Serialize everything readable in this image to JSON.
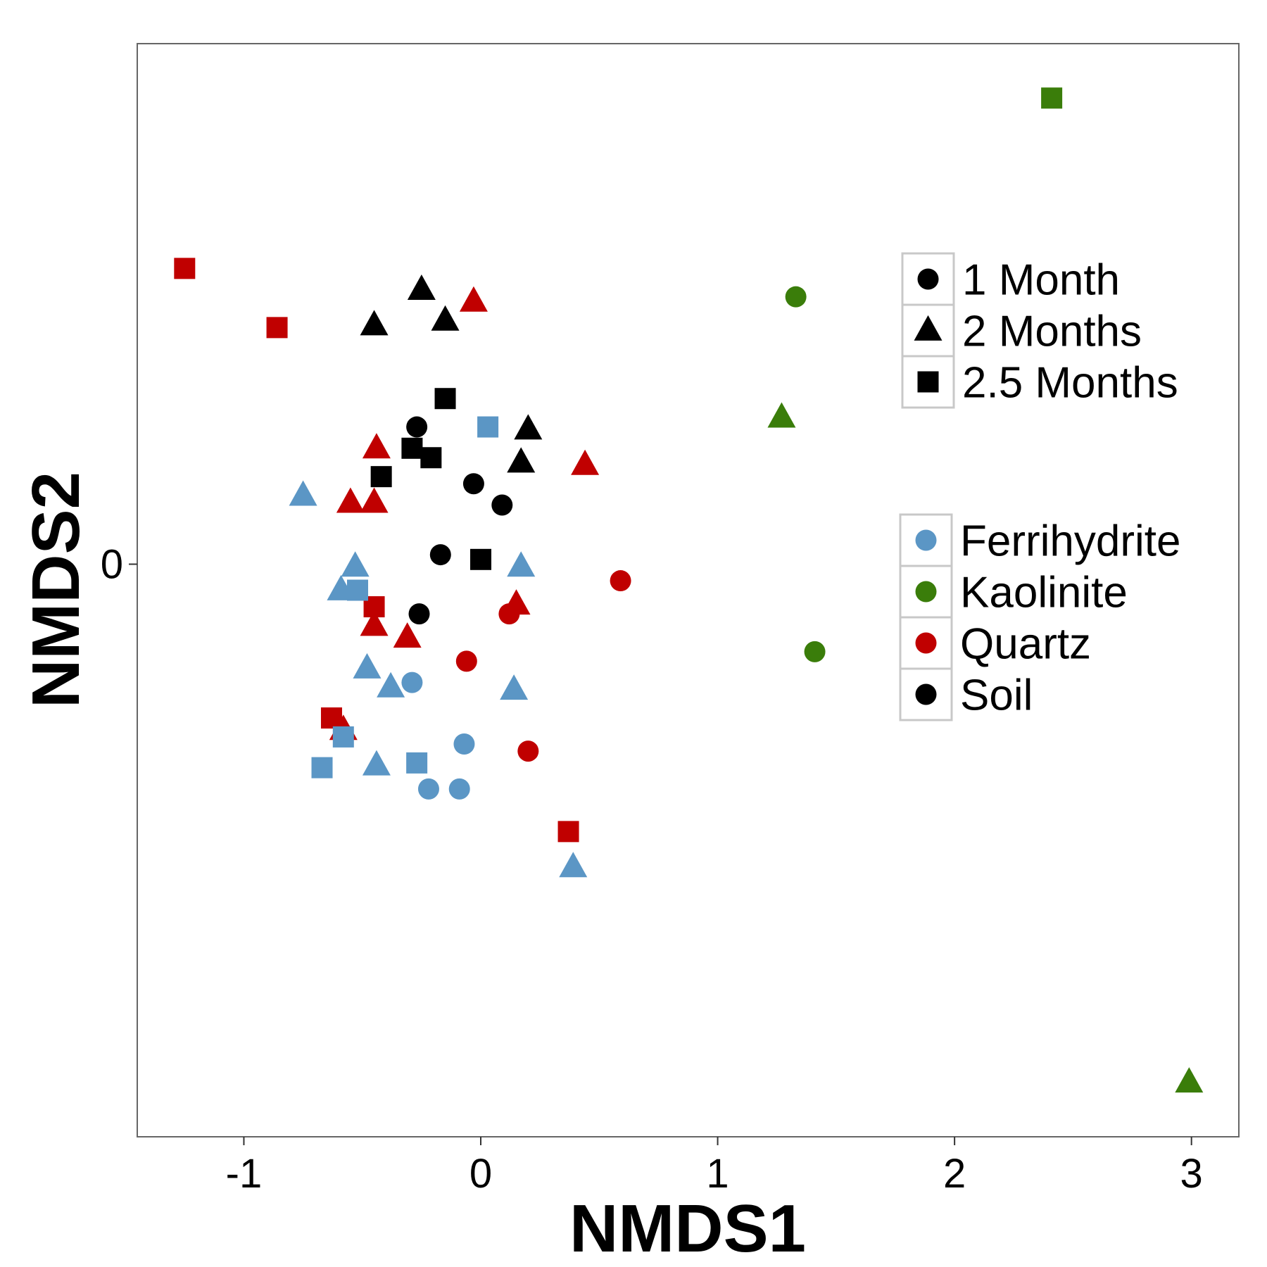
{
  "chart_data": {
    "type": "scatter",
    "title": "",
    "xlabel": "NMDS1",
    "ylabel": "NMDS2",
    "xlim": [
      -1.45,
      3.2
    ],
    "ylim": [
      -2.42,
      2.2
    ],
    "x_ticks": [
      -1,
      0,
      1,
      2,
      3
    ],
    "x_tick_labels": [
      "-1",
      "0",
      "1",
      "2",
      "3"
    ],
    "y_ticks": [
      0
    ],
    "y_tick_labels": [
      "0"
    ],
    "grid": false,
    "shape_legend": {
      "placement": "right-upper",
      "entries": [
        {
          "label": "1 Month",
          "shape": "circle"
        },
        {
          "label": "2 Months",
          "shape": "triangle"
        },
        {
          "label": "2.5 Months",
          "shape": "square"
        }
      ]
    },
    "color_legend": {
      "placement": "right-middle",
      "entries": [
        {
          "label": "Ferrihydrite",
          "color": "#5b96c5"
        },
        {
          "label": "Kaolinite",
          "color": "#3a7d0a"
        },
        {
          "label": "Quartz",
          "color": "#c00000"
        },
        {
          "label": "Soil",
          "color": "#000000"
        }
      ]
    },
    "points": [
      {
        "material": "Soil",
        "time": "1 Month",
        "x": -0.27,
        "y": 0.58
      },
      {
        "material": "Soil",
        "time": "1 Month",
        "x": -0.03,
        "y": 0.34
      },
      {
        "material": "Soil",
        "time": "1 Month",
        "x": 0.09,
        "y": 0.25
      },
      {
        "material": "Soil",
        "time": "1 Month",
        "x": -0.17,
        "y": 0.04
      },
      {
        "material": "Soil",
        "time": "1 Month",
        "x": -0.26,
        "y": -0.21
      },
      {
        "material": "Soil",
        "time": "2 Months",
        "x": -0.25,
        "y": 1.16
      },
      {
        "material": "Soil",
        "time": "2 Months",
        "x": -0.45,
        "y": 1.01
      },
      {
        "material": "Soil",
        "time": "2 Months",
        "x": -0.15,
        "y": 1.03
      },
      {
        "material": "Soil",
        "time": "2 Months",
        "x": 0.2,
        "y": 0.57
      },
      {
        "material": "Soil",
        "time": "2 Months",
        "x": 0.17,
        "y": 0.43
      },
      {
        "material": "Soil",
        "time": "2.5 Months",
        "x": -0.15,
        "y": 0.7
      },
      {
        "material": "Soil",
        "time": "2.5 Months",
        "x": -0.29,
        "y": 0.49
      },
      {
        "material": "Soil",
        "time": "2.5 Months",
        "x": -0.21,
        "y": 0.45
      },
      {
        "material": "Soil",
        "time": "2.5 Months",
        "x": -0.42,
        "y": 0.37
      },
      {
        "material": "Soil",
        "time": "2.5 Months",
        "x": 0.0,
        "y": 0.02
      },
      {
        "material": "Quartz",
        "time": "1 Month",
        "x": 0.59,
        "y": -0.07
      },
      {
        "material": "Quartz",
        "time": "1 Month",
        "x": 0.12,
        "y": -0.21
      },
      {
        "material": "Quartz",
        "time": "1 Month",
        "x": -0.06,
        "y": -0.41
      },
      {
        "material": "Quartz",
        "time": "1 Month",
        "x": 0.2,
        "y": -0.79
      },
      {
        "material": "Quartz",
        "time": "2 Months",
        "x": -0.03,
        "y": 1.11
      },
      {
        "material": "Quartz",
        "time": "2 Months",
        "x": -0.44,
        "y": 0.49
      },
      {
        "material": "Quartz",
        "time": "2 Months",
        "x": 0.44,
        "y": 0.42
      },
      {
        "material": "Quartz",
        "time": "2 Months",
        "x": -0.55,
        "y": 0.26
      },
      {
        "material": "Quartz",
        "time": "2 Months",
        "x": -0.45,
        "y": 0.26
      },
      {
        "material": "Quartz",
        "time": "2 Months",
        "x": 0.15,
        "y": -0.17
      },
      {
        "material": "Quartz",
        "time": "2 Months",
        "x": -0.45,
        "y": -0.26
      },
      {
        "material": "Quartz",
        "time": "2 Months",
        "x": -0.31,
        "y": -0.31
      },
      {
        "material": "Quartz",
        "time": "2 Months",
        "x": -0.58,
        "y": -0.7
      },
      {
        "material": "Quartz",
        "time": "2.5 Months",
        "x": -1.25,
        "y": 1.25
      },
      {
        "material": "Quartz",
        "time": "2.5 Months",
        "x": -0.86,
        "y": 1.0
      },
      {
        "material": "Quartz",
        "time": "2.5 Months",
        "x": -0.45,
        "y": -0.18
      },
      {
        "material": "Quartz",
        "time": "2.5 Months",
        "x": -0.63,
        "y": -0.65
      },
      {
        "material": "Quartz",
        "time": "2.5 Months",
        "x": 0.37,
        "y": -1.13
      },
      {
        "material": "Ferrihydrite",
        "time": "1 Month",
        "x": -0.29,
        "y": -0.5
      },
      {
        "material": "Ferrihydrite",
        "time": "1 Month",
        "x": -0.07,
        "y": -0.76
      },
      {
        "material": "Ferrihydrite",
        "time": "1 Month",
        "x": -0.22,
        "y": -0.95
      },
      {
        "material": "Ferrihydrite",
        "time": "1 Month",
        "x": -0.09,
        "y": -0.95
      },
      {
        "material": "Ferrihydrite",
        "time": "2 Months",
        "x": -0.75,
        "y": 0.29
      },
      {
        "material": "Ferrihydrite",
        "time": "2 Months",
        "x": -0.53,
        "y": -0.01
      },
      {
        "material": "Ferrihydrite",
        "time": "2 Months",
        "x": -0.59,
        "y": -0.11
      },
      {
        "material": "Ferrihydrite",
        "time": "2 Months",
        "x": 0.17,
        "y": -0.01
      },
      {
        "material": "Ferrihydrite",
        "time": "2 Months",
        "x": -0.48,
        "y": -0.44
      },
      {
        "material": "Ferrihydrite",
        "time": "2 Months",
        "x": -0.38,
        "y": -0.52
      },
      {
        "material": "Ferrihydrite",
        "time": "2 Months",
        "x": 0.14,
        "y": -0.53
      },
      {
        "material": "Ferrihydrite",
        "time": "2 Months",
        "x": -0.44,
        "y": -0.85
      },
      {
        "material": "Ferrihydrite",
        "time": "2 Months",
        "x": 0.39,
        "y": -1.28
      },
      {
        "material": "Ferrihydrite",
        "time": "2.5 Months",
        "x": 0.03,
        "y": 0.58
      },
      {
        "material": "Ferrihydrite",
        "time": "2.5 Months",
        "x": -0.52,
        "y": -0.11
      },
      {
        "material": "Ferrihydrite",
        "time": "2.5 Months",
        "x": -0.58,
        "y": -0.73
      },
      {
        "material": "Ferrihydrite",
        "time": "2.5 Months",
        "x": -0.67,
        "y": -0.86
      },
      {
        "material": "Ferrihydrite",
        "time": "2.5 Months",
        "x": -0.27,
        "y": -0.84
      },
      {
        "material": "Kaolinite",
        "time": "1 Month",
        "x": 1.33,
        "y": 1.13
      },
      {
        "material": "Kaolinite",
        "time": "1 Month",
        "x": 1.41,
        "y": -0.37
      },
      {
        "material": "Kaolinite",
        "time": "2 Months",
        "x": 1.27,
        "y": 0.62
      },
      {
        "material": "Kaolinite",
        "time": "2 Months",
        "x": 2.99,
        "y": -2.19
      },
      {
        "material": "Kaolinite",
        "time": "2.5 Months",
        "x": 2.41,
        "y": 1.97
      }
    ]
  }
}
